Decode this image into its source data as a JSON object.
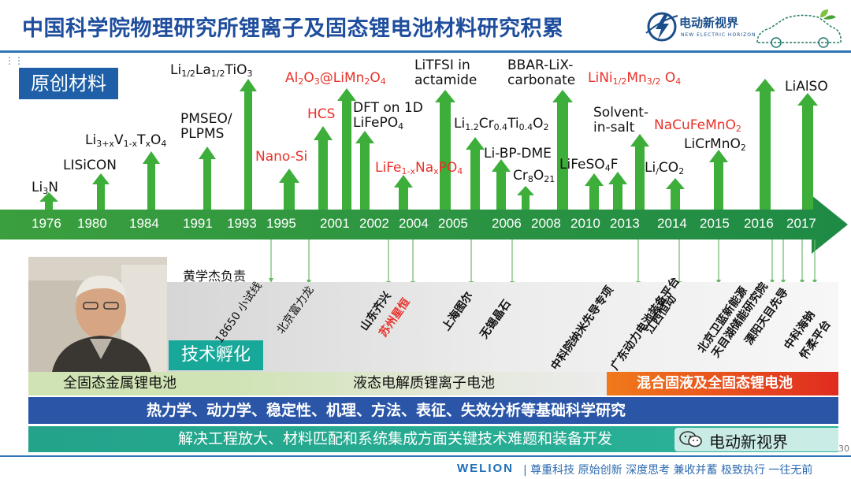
{
  "header": {
    "title": "中国科学院物理研究所锂离子及固态锂电池材料研究积累",
    "logo_brand": "电动新视界",
    "logo_sub": "NEW ELECTRIC HORIZON"
  },
  "badges": {
    "original": "原创材料",
    "incubation": "技术孵化"
  },
  "years": [
    "1976",
    "1980",
    "1984",
    "1991",
    "1993",
    "1995",
    "2001",
    "2002",
    "2004",
    "2005",
    "2006",
    "2008",
    "2010",
    "2013",
    "2014",
    "2015",
    "2016",
    "2017"
  ],
  "materials": [
    {
      "id": "li3n",
      "text": "Li3N",
      "color": "black"
    },
    {
      "id": "lisicon",
      "text": "LISiCON",
      "color": "black"
    },
    {
      "id": "li3xv",
      "text": "Li3+xV1-xTxO4",
      "color": "black"
    },
    {
      "id": "pmseo",
      "line1": "PMSEO/",
      "line2": "PLPMS",
      "color": "black"
    },
    {
      "id": "llto",
      "text": "Li1/2La1/2TiO3",
      "color": "black"
    },
    {
      "id": "nanosi",
      "text": "Nano-Si",
      "color": "red"
    },
    {
      "id": "hcs",
      "text": "HCS",
      "color": "red"
    },
    {
      "id": "al2o3",
      "text": "Al2O3@LiMn2O4",
      "color": "red"
    },
    {
      "id": "dft",
      "line1": "DFT on 1D",
      "line2": "LiFePO4",
      "color": "black"
    },
    {
      "id": "lifena",
      "text": "LiFe1-xNaxPO4",
      "color": "red"
    },
    {
      "id": "litfsi",
      "line1": "LiTFSI in",
      "line2": "actamide",
      "color": "black"
    },
    {
      "id": "licrti",
      "text": "Li1.2Cr0.4Ti0.4O2",
      "color": "black"
    },
    {
      "id": "libp",
      "text": "Li-BP-DME",
      "color": "black"
    },
    {
      "id": "cr8o21",
      "text": "Cr8O21",
      "color": "black"
    },
    {
      "id": "bbar",
      "line1": "BBAR-LiX-",
      "line2": "carbonate",
      "color": "black"
    },
    {
      "id": "lifesof",
      "text": "LiFeSO4F",
      "color": "black"
    },
    {
      "id": "lnmo",
      "text": "LiNi1/2Mn3/2 O4",
      "color": "red"
    },
    {
      "id": "solvent",
      "line1": "Solvent-",
      "line2": "in-salt",
      "color": "black"
    },
    {
      "id": "lico2",
      "text": "Li/CO2",
      "color": "black"
    },
    {
      "id": "nacu",
      "text": "NaCuFeMnO2",
      "color": "red"
    },
    {
      "id": "licrmno",
      "text": "LiCrMnO2",
      "color": "black"
    },
    {
      "id": "lialso",
      "text": "LiAlSO",
      "color": "black"
    }
  ],
  "leader": "黄学杰负责",
  "companies": [
    {
      "id": "c1",
      "text": "18650 小试线",
      "style": "thin"
    },
    {
      "id": "c2",
      "text": "北京富力龙",
      "style": "thin"
    },
    {
      "id": "c3",
      "text": "山东齐兴",
      "style": "bold"
    },
    {
      "id": "c4",
      "text": "苏州星恒",
      "style": "red"
    },
    {
      "id": "c5",
      "text": "上海图尔",
      "style": "bold"
    },
    {
      "id": "c6",
      "text": "无锡晶石",
      "style": "bold"
    },
    {
      "id": "c7",
      "text": "中科院纳米先导专项",
      "style": "bold"
    },
    {
      "id": "c8",
      "text": "江西恒动",
      "style": "bold"
    },
    {
      "id": "c9",
      "text": "广东动力电池装备平台",
      "style": "bold"
    },
    {
      "id": "c10",
      "text": "北京卫蓝新能源",
      "style": "bold"
    },
    {
      "id": "c11",
      "text": "天目湖储能研究院",
      "style": "bold"
    },
    {
      "id": "c12",
      "text": "溧阳天目先导",
      "style": "bold"
    },
    {
      "id": "c13",
      "text": "中科海钠",
      "style": "bold"
    },
    {
      "id": "c14",
      "text": "怀柔平台",
      "style": "bold"
    }
  ],
  "bands": {
    "solid": "全固态金属锂电池",
    "liquid": "液态电解质锂离子电池",
    "hybrid": "混合固液及全固态锂电池",
    "science": "热力学、动力学、稳定性、机理、方法、表征、失效分析等基础科学研究",
    "engineering": "解决工程放大、材料匹配和系统集成方面关键技术难题和装备开发"
  },
  "footer": {
    "brand": "WELION",
    "slogan": "| 尊重科技  原始创新  深度思考  兼收并蓄  极致执行  一往无前",
    "page": "30",
    "wechat": "电动新视界"
  },
  "colors": {
    "title_blue": "#1f4e9e",
    "arrow_green": "#2a9a3c",
    "material_red": "#e8312a",
    "science_band": "#2b56a8",
    "engineering_band": "#23a38a"
  }
}
